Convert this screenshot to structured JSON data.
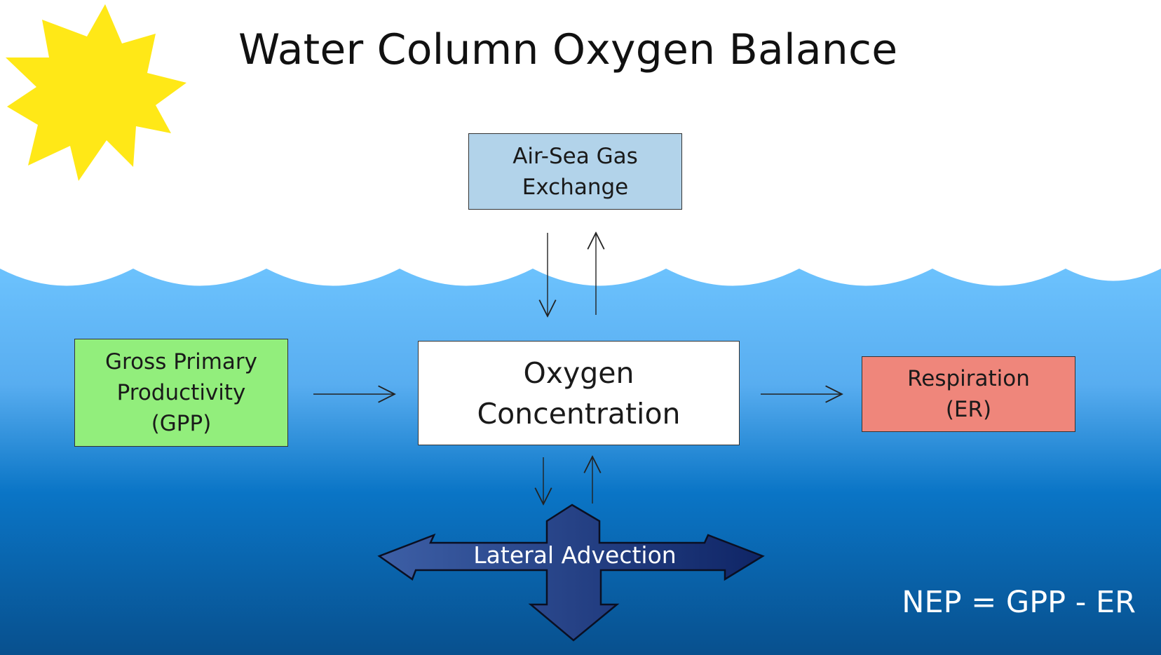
{
  "title": "Water Column Oxygen Balance",
  "boxes": {
    "air_sea": {
      "line1": "Air-Sea Gas",
      "line2": "Exchange",
      "color": "#b2d3ea"
    },
    "gpp": {
      "line1": "Gross Primary",
      "line2": "Productivity",
      "line3": "(GPP)",
      "color": "#92ee7c"
    },
    "oxygen": {
      "line1": "Oxygen",
      "line2": "Concentration",
      "color": "#ffffff"
    },
    "respiration": {
      "line1": "Respiration",
      "line2": "(ER)",
      "color": "#ef867b"
    }
  },
  "advection": {
    "label": "Lateral Advection"
  },
  "equation": "NEP = GPP - ER",
  "colors": {
    "sun": "#ffe817",
    "water_top": "#6cc2fd",
    "water_bottom": "#08508e",
    "advection_arrow": "#1f3a80"
  },
  "icons": [
    "sun-icon",
    "wave-surface"
  ]
}
